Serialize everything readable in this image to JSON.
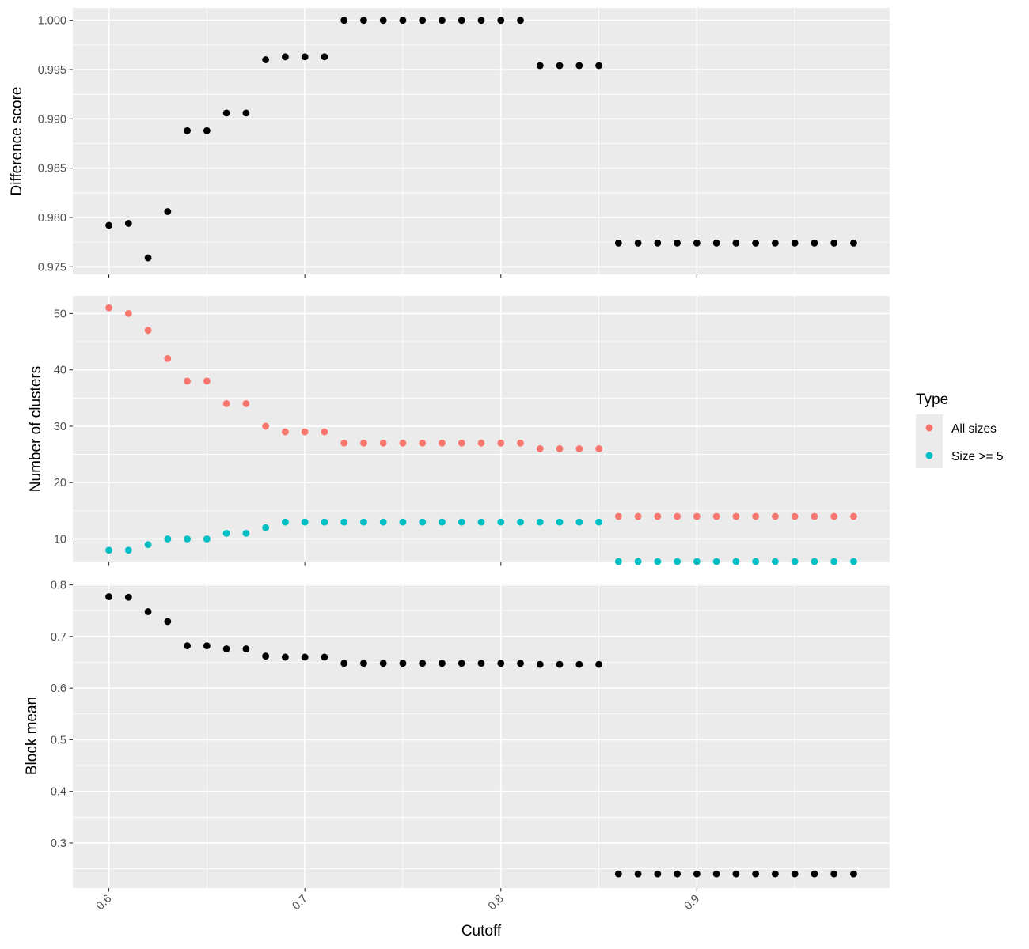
{
  "chart_data": [
    {
      "type": "scatter",
      "panel": "top",
      "xlabel": "",
      "ylabel": "Difference score",
      "xlim": [
        0.5816,
        0.9984
      ],
      "ylim": [
        0.97422,
        1.00126
      ],
      "x_ticks": [
        0.6,
        0.7,
        0.8,
        0.9
      ],
      "y_ticks": [
        0.975,
        0.98,
        0.985,
        0.99,
        0.995,
        1.0
      ],
      "y_tick_labels": [
        "0.975",
        "0.980",
        "0.985",
        "0.990",
        "0.995",
        "1.000"
      ],
      "series": [
        {
          "color": "#000000",
          "x": [
            0.6,
            0.61,
            0.62,
            0.63,
            0.64,
            0.65,
            0.66,
            0.67,
            0.68,
            0.69,
            0.7,
            0.71,
            0.72,
            0.73,
            0.74,
            0.75,
            0.76,
            0.77,
            0.78,
            0.79,
            0.8,
            0.81,
            0.82,
            0.83,
            0.84,
            0.85,
            0.86,
            0.87,
            0.88,
            0.89,
            0.9,
            0.91,
            0.92,
            0.93,
            0.94,
            0.95,
            0.96,
            0.97,
            0.98
          ],
          "y": [
            0.9792,
            0.9794,
            0.9759,
            0.9806,
            0.9888,
            0.9888,
            0.9906,
            0.9906,
            0.996,
            0.9963,
            0.9963,
            0.9963,
            1.0,
            1.0,
            1.0,
            1.0,
            1.0,
            1.0,
            1.0,
            1.0,
            1.0,
            1.0,
            0.9954,
            0.9954,
            0.9954,
            0.9954,
            0.9774,
            0.9774,
            0.9774,
            0.9774,
            0.9774,
            0.9774,
            0.9774,
            0.9774,
            0.9774,
            0.9774,
            0.9774,
            0.9774,
            0.9774
          ]
        }
      ]
    },
    {
      "type": "scatter",
      "panel": "middle",
      "xlabel": "",
      "ylabel": "Number of clusters",
      "xlim": [
        0.5816,
        0.9984
      ],
      "ylim": [
        5.858,
        53.142
      ],
      "x_ticks": [
        0.6,
        0.7,
        0.8,
        0.9
      ],
      "y_ticks": [
        10,
        20,
        30,
        40,
        50
      ],
      "y_tick_labels": [
        "10",
        "20",
        "30",
        "40",
        "50"
      ],
      "legend": {
        "title": "Type",
        "placement": "right"
      },
      "series": [
        {
          "name": "All sizes",
          "color": "#F8766D",
          "x": [
            0.6,
            0.61,
            0.62,
            0.63,
            0.64,
            0.65,
            0.66,
            0.67,
            0.68,
            0.69,
            0.7,
            0.71,
            0.72,
            0.73,
            0.74,
            0.75,
            0.76,
            0.77,
            0.78,
            0.79,
            0.8,
            0.81,
            0.82,
            0.83,
            0.84,
            0.85,
            0.86,
            0.87,
            0.88,
            0.89,
            0.9,
            0.91,
            0.92,
            0.93,
            0.94,
            0.95,
            0.96,
            0.97,
            0.98
          ],
          "y": [
            51,
            50,
            47,
            42,
            38,
            38,
            34,
            34,
            30,
            29,
            29,
            29,
            27,
            27,
            27,
            27,
            27,
            27,
            27,
            27,
            27,
            27,
            26,
            26,
            26,
            26,
            14,
            14,
            14,
            14,
            14,
            14,
            14,
            14,
            14,
            14,
            14,
            14,
            14
          ]
        },
        {
          "name": "Size >= 5",
          "color": "#00BFC4",
          "x": [
            0.6,
            0.61,
            0.62,
            0.63,
            0.64,
            0.65,
            0.66,
            0.67,
            0.68,
            0.69,
            0.7,
            0.71,
            0.72,
            0.73,
            0.74,
            0.75,
            0.76,
            0.77,
            0.78,
            0.79,
            0.8,
            0.81,
            0.82,
            0.83,
            0.84,
            0.85,
            0.86,
            0.87,
            0.88,
            0.89,
            0.9,
            0.91,
            0.92,
            0.93,
            0.94,
            0.95,
            0.96,
            0.97,
            0.98
          ],
          "y": [
            8,
            8,
            9,
            10,
            10,
            10,
            11,
            11,
            12,
            13,
            13,
            13,
            13,
            13,
            13,
            13,
            13,
            13,
            13,
            13,
            13,
            13,
            13,
            13,
            13,
            13,
            6,
            6,
            6,
            6,
            6,
            6,
            6,
            6,
            6,
            6,
            6,
            6,
            6
          ]
        }
      ]
    },
    {
      "type": "scatter",
      "panel": "bottom",
      "xlabel": "Cutoff",
      "ylabel": "Block mean",
      "xlim": [
        0.5816,
        0.9984
      ],
      "ylim": [
        0.2126,
        0.8024
      ],
      "x_ticks": [
        0.6,
        0.7,
        0.8,
        0.9
      ],
      "x_tick_labels": [
        "0.6",
        "0.7",
        "0.8",
        "0.9"
      ],
      "y_ticks": [
        0.3,
        0.4,
        0.5,
        0.6,
        0.7,
        0.8
      ],
      "y_tick_labels": [
        "0.3",
        "0.4",
        "0.5",
        "0.6",
        "0.7",
        "0.8"
      ],
      "series": [
        {
          "color": "#000000",
          "x": [
            0.6,
            0.61,
            0.62,
            0.63,
            0.64,
            0.65,
            0.66,
            0.67,
            0.68,
            0.69,
            0.7,
            0.71,
            0.72,
            0.73,
            0.74,
            0.75,
            0.76,
            0.77,
            0.78,
            0.79,
            0.8,
            0.81,
            0.82,
            0.83,
            0.84,
            0.85,
            0.86,
            0.87,
            0.88,
            0.89,
            0.9,
            0.91,
            0.92,
            0.93,
            0.94,
            0.95,
            0.96,
            0.97,
            0.98
          ],
          "y": [
            0.777,
            0.776,
            0.748,
            0.729,
            0.682,
            0.682,
            0.676,
            0.676,
            0.662,
            0.66,
            0.66,
            0.66,
            0.648,
            0.648,
            0.648,
            0.648,
            0.648,
            0.648,
            0.648,
            0.648,
            0.648,
            0.648,
            0.646,
            0.646,
            0.646,
            0.646,
            0.24,
            0.24,
            0.24,
            0.24,
            0.24,
            0.24,
            0.24,
            0.24,
            0.24,
            0.24,
            0.24,
            0.24,
            0.24
          ]
        }
      ]
    }
  ]
}
